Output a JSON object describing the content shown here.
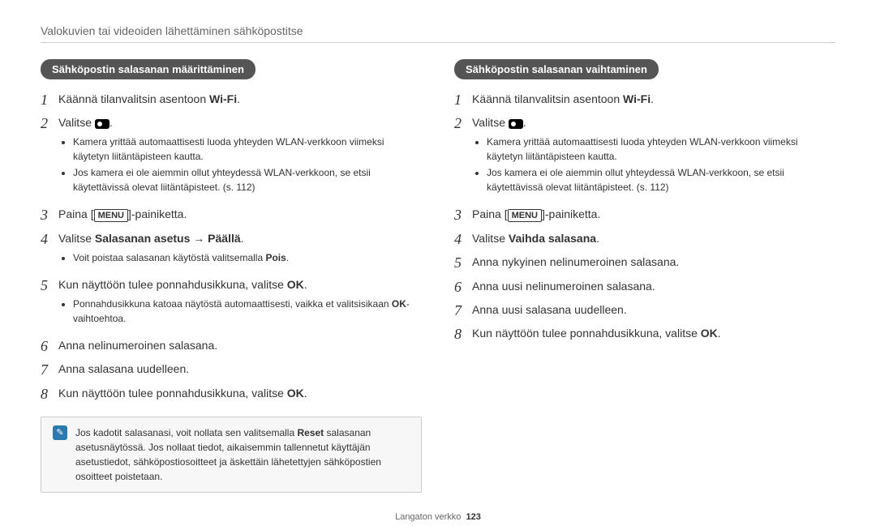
{
  "page": {
    "title": "Valokuvien tai videoiden lähettäminen sähköpostitse",
    "footer_label": "Langaton verkko",
    "footer_page": "123"
  },
  "icons": {
    "wifi": "Wi-Fi",
    "menu": "MENU",
    "note_glyph": "✎"
  },
  "styling": {
    "background": "#ffffff",
    "text_color": "#333333",
    "title_color": "#666666",
    "heading_bg": "#555555",
    "heading_fg": "#ffffff",
    "note_bg": "#f7f7f7",
    "note_border": "#cccccc",
    "note_icon_bg": "#2a7ab0",
    "divider_color": "#cccccc",
    "step_num_fontsize": 18,
    "body_fontsize": 14,
    "bullet_fontsize": 12,
    "heading_fontsize": 13,
    "title_fontsize": 14,
    "footer_fontsize": 11
  },
  "left": {
    "heading": "Sähköpostin salasanan määrittäminen",
    "step1_pre": "Käännä tilanvalitsin asentoon ",
    "step1_post": ".",
    "step2_pre": "Valitse ",
    "step2_post": ".",
    "bullets_a": [
      "Kamera yrittää automaattisesti luoda yhteyden WLAN-verkkoon viimeksi käytetyn liitäntäpisteen kautta.",
      "Jos kamera ei ole aiemmin ollut yhteydessä WLAN-verkkoon, se etsii käytettävissä olevat liitäntäpisteet. (s. 112)"
    ],
    "step3_pre": "Paina [",
    "step3_post": "]-painiketta.",
    "step4_pre": "Valitse ",
    "step4_bold": "Salasanan asetus → Päällä",
    "step4_post": ".",
    "bullets_b_pre": "Voit poistaa salasanan käytöstä valitsemalla ",
    "bullets_b_bold": "Pois",
    "bullets_b_post": ".",
    "step5_pre": "Kun näyttöön tulee ponnahdusikkuna, valitse ",
    "step5_bold": "OK",
    "step5_post": ".",
    "bullets_c_pre": "Ponnahdusikkuna katoaa näytöstä automaattisesti, vaikka et valitsisikaan ",
    "bullets_c_bold": "OK",
    "bullets_c_post": "-vaihtoehtoa.",
    "step6": "Anna nelinumeroinen salasana.",
    "step7": "Anna salasana uudelleen.",
    "step8_pre": "Kun näyttöön tulee ponnahdusikkuna, valitse ",
    "step8_bold": "OK",
    "step8_post": ".",
    "note_pre": "Jos kadotit salasanasi, voit nollata sen valitsemalla ",
    "note_bold": "Reset",
    "note_post": " salasanan asetusnäytössä. Jos nollaat tiedot, aikaisemmin tallennetut käyttäjän asetustiedot, sähköpostiosoitteet ja äskettäin lähetettyjen sähköpostien osoitteet poistetaan."
  },
  "right": {
    "heading": "Sähköpostin salasanan vaihtaminen",
    "step1_pre": "Käännä tilanvalitsin asentoon ",
    "step1_post": ".",
    "step2_pre": "Valitse ",
    "step2_post": ".",
    "bullets_a": [
      "Kamera yrittää automaattisesti luoda yhteyden WLAN-verkkoon viimeksi käytetyn liitäntäpisteen kautta.",
      "Jos kamera ei ole aiemmin ollut yhteydessä WLAN-verkkoon, se etsii käytettävissä olevat liitäntäpisteet. (s. 112)"
    ],
    "step3_pre": "Paina [",
    "step3_post": "]-painiketta.",
    "step4_pre": "Valitse ",
    "step4_bold": "Vaihda salasana",
    "step4_post": ".",
    "step5": "Anna nykyinen nelinumeroinen salasana.",
    "step6": "Anna uusi nelinumeroinen salasana.",
    "step7": "Anna uusi salasana uudelleen.",
    "step8_pre": "Kun näyttöön tulee ponnahdusikkuna, valitse ",
    "step8_bold": "OK",
    "step8_post": "."
  }
}
